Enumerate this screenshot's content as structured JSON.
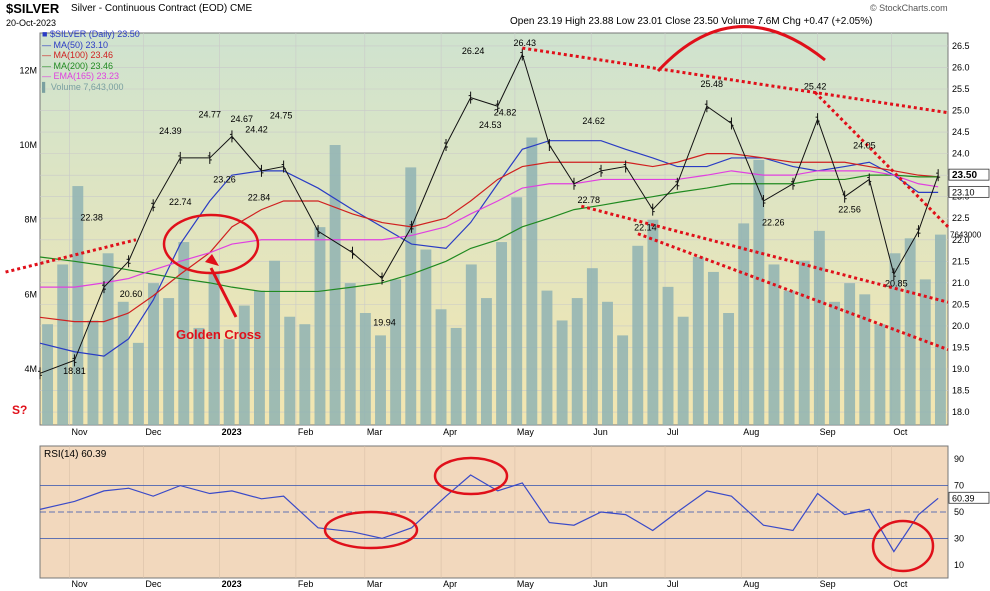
{
  "header": {
    "symbol": "$SILVER",
    "description": "Silver - Continuous Contract (EOD)",
    "exchange": "CME",
    "date": "20-Oct-2023",
    "ohlc": "Open 23.19  High 23.88  Low 23.01  Close 23.50  Volume 7.6M  Chg +0.47 (+2.05%)",
    "watermark": "© StockCharts.com"
  },
  "legend": {
    "price": "$SILVER (Daily) 23.50",
    "ma50": "MA(50) 23.10",
    "ma100": "MA(100) 23.46",
    "ma200": "MA(200) 23.46",
    "ema165": "EMA(165) 23.23",
    "volume": "Volume 7,643,000"
  },
  "annotations": {
    "golden_cross": "Golden Cross",
    "question": "S?"
  },
  "colors": {
    "price_bg_top": "#cfe3cf",
    "price_bg_bottom": "#f3e6b0",
    "rsi_bg": "#f2d8bd",
    "ma50": "#2a3cc4",
    "ma100": "#d02020",
    "ma200": "#208a20",
    "ema165": "#e040e0",
    "volume": "#8fb3b3",
    "annotation": "#e0101a",
    "rsi_line": "#3a4ac8"
  },
  "chart_data": [
    {
      "type": "line",
      "title": "$SILVER (Daily)",
      "x": [
        "2022-10-20",
        "2022-11-03",
        "2022-11-15",
        "2022-11-25",
        "2022-12-05",
        "2022-12-16",
        "2022-12-28",
        "2023-01-06",
        "2023-01-18",
        "2023-01-27",
        "2023-02-10",
        "2023-02-24",
        "2023-03-08",
        "2023-03-20",
        "2023-04-03",
        "2023-04-13",
        "2023-04-24",
        "2023-05-04",
        "2023-05-15",
        "2023-05-25",
        "2023-06-05",
        "2023-06-15",
        "2023-06-26",
        "2023-07-06",
        "2023-07-18",
        "2023-07-28",
        "2023-08-10",
        "2023-08-22",
        "2023-09-01",
        "2023-09-12",
        "2023-09-22",
        "2023-10-02",
        "2023-10-12",
        "2023-10-20"
      ],
      "series": [
        {
          "name": "$SILVER (Daily)",
          "values": [
            18.9,
            19.2,
            20.9,
            21.5,
            22.8,
            23.9,
            23.9,
            24.4,
            23.6,
            23.7,
            22.2,
            21.7,
            21.1,
            22.3,
            24.2,
            25.3,
            25.1,
            26.3,
            24.2,
            23.3,
            23.6,
            23.7,
            22.7,
            23.3,
            25.1,
            24.7,
            22.9,
            23.3,
            24.8,
            23.0,
            23.4,
            21.2,
            22.2,
            23.5
          ]
        },
        {
          "name": "MA(50)",
          "values": [
            19.6,
            19.4,
            19.3,
            19.7,
            20.6,
            21.9,
            22.9,
            23.5,
            23.6,
            23.6,
            23.2,
            22.7,
            22.3,
            21.9,
            21.8,
            22.4,
            23.3,
            24.1,
            24.3,
            24.3,
            24.3,
            24.1,
            23.9,
            23.7,
            23.7,
            23.9,
            23.9,
            23.7,
            23.6,
            23.7,
            23.8,
            23.5,
            23.1,
            23.1
          ]
        },
        {
          "name": "MA(100)",
          "values": [
            20.2,
            20.1,
            20.1,
            20.3,
            20.7,
            21.2,
            21.7,
            22.3,
            22.7,
            22.9,
            22.9,
            22.6,
            22.4,
            22.3,
            22.5,
            22.9,
            23.4,
            23.7,
            23.8,
            23.8,
            23.8,
            23.8,
            23.7,
            23.8,
            24.0,
            24.0,
            23.9,
            23.8,
            23.8,
            23.8,
            23.7,
            23.6,
            23.5,
            23.46
          ]
        },
        {
          "name": "MA(200)",
          "values": [
            21.6,
            21.5,
            21.4,
            21.3,
            21.2,
            21.1,
            21.0,
            20.9,
            20.8,
            20.8,
            20.8,
            20.9,
            21.0,
            21.2,
            21.5,
            21.8,
            22.0,
            22.3,
            22.5,
            22.7,
            22.8,
            22.9,
            23.0,
            23.1,
            23.2,
            23.3,
            23.3,
            23.3,
            23.4,
            23.4,
            23.5,
            23.5,
            23.46,
            23.46
          ]
        },
        {
          "name": "EMA(165)",
          "values": [
            20.9,
            20.9,
            21.0,
            21.1,
            21.3,
            21.5,
            21.7,
            21.9,
            22.0,
            22.0,
            22.0,
            22.0,
            22.0,
            22.1,
            22.3,
            22.6,
            22.9,
            23.2,
            23.3,
            23.3,
            23.4,
            23.4,
            23.4,
            23.4,
            23.5,
            23.6,
            23.5,
            23.5,
            23.6,
            23.6,
            23.6,
            23.5,
            23.3,
            23.23
          ]
        }
      ],
      "ylim": [
        17.7,
        26.8
      ],
      "yticks": [
        18.0,
        18.5,
        19.0,
        19.5,
        20.0,
        20.5,
        21.0,
        21.5,
        22.0,
        22.5,
        23.0,
        23.5,
        24.0,
        24.5,
        25.0,
        25.5,
        26.0,
        26.5
      ],
      "volume": {
        "ticks": [
          "4M",
          "6M",
          "8M",
          "10M",
          "12M"
        ],
        "values": [
          5.2,
          6.8,
          8.9,
          5.3,
          7.1,
          5.8,
          4.7,
          6.3,
          5.9,
          7.4,
          5.1,
          6.6,
          4.8,
          5.7,
          6.1,
          6.9,
          5.4,
          5.2,
          7.8,
          10.0,
          6.3,
          5.5,
          4.9,
          6.4,
          9.4,
          7.2,
          5.6,
          5.1,
          6.8,
          5.9,
          7.4,
          8.6,
          10.2,
          6.1,
          5.3,
          5.9,
          6.7,
          5.8,
          4.9,
          7.3,
          8.0,
          6.2,
          5.4,
          7.0,
          6.6,
          5.5,
          7.9,
          9.6,
          6.8,
          6.1,
          6.9,
          7.7,
          5.8,
          6.3,
          6.0,
          5.2,
          7.1,
          7.5,
          6.4,
          7.6
        ],
        "ylim": [
          2.5,
          13
        ]
      },
      "price_labels": [
        {
          "x": "2022-11-03",
          "y": 18.81,
          "text": "18.81"
        },
        {
          "x": "2022-11-10",
          "y": 22.38,
          "text": "22.38"
        },
        {
          "x": "2022-11-26",
          "y": 20.6,
          "text": "20.60"
        },
        {
          "x": "2022-12-12",
          "y": 24.39,
          "text": "24.39"
        },
        {
          "x": "2022-12-16",
          "y": 22.74,
          "text": "22.74"
        },
        {
          "x": "2022-12-28",
          "y": 24.77,
          "text": "24.77"
        },
        {
          "x": "2023-01-03",
          "y": 23.26,
          "text": "23.26"
        },
        {
          "x": "2023-01-10",
          "y": 24.67,
          "text": "24.67"
        },
        {
          "x": "2023-01-16",
          "y": 24.42,
          "text": "24.42"
        },
        {
          "x": "2023-01-17",
          "y": 22.84,
          "text": "22.84"
        },
        {
          "x": "2023-01-26",
          "y": 24.75,
          "text": "24.75"
        },
        {
          "x": "2023-03-09",
          "y": 19.94,
          "text": "19.94"
        },
        {
          "x": "2023-04-14",
          "y": 26.24,
          "text": "26.24"
        },
        {
          "x": "2023-04-21",
          "y": 24.53,
          "text": "24.53"
        },
        {
          "x": "2023-04-27",
          "y": 24.82,
          "text": "24.82"
        },
        {
          "x": "2023-05-05",
          "y": 26.43,
          "text": "26.43"
        },
        {
          "x": "2023-05-31",
          "y": 22.78,
          "text": "22.78"
        },
        {
          "x": "2023-06-02",
          "y": 24.62,
          "text": "24.62"
        },
        {
          "x": "2023-06-23",
          "y": 22.14,
          "text": "22.14"
        },
        {
          "x": "2023-07-20",
          "y": 25.48,
          "text": "25.48"
        },
        {
          "x": "2023-08-14",
          "y": 22.26,
          "text": "22.26"
        },
        {
          "x": "2023-08-31",
          "y": 25.42,
          "text": "25.42"
        },
        {
          "x": "2023-09-14",
          "y": 22.56,
          "text": "22.56"
        },
        {
          "x": "2023-09-20",
          "y": 24.05,
          "text": "24.05"
        },
        {
          "x": "2023-10-03",
          "y": 20.85,
          "text": "20.85"
        }
      ],
      "last_price_tags": [
        {
          "text": "23.50",
          "y": 23.5
        },
        {
          "text": "23.10",
          "y": 23.1
        }
      ],
      "volume_tag": "7643000",
      "x_axis_labels": [
        {
          "x": "2022-11-01",
          "text": "Nov"
        },
        {
          "x": "2022-12-01",
          "text": "Dec"
        },
        {
          "x": "2023-01-01",
          "text": "2023"
        },
        {
          "x": "2023-02-01",
          "text": "Feb"
        },
        {
          "x": "2023-03-01",
          "text": "Mar"
        },
        {
          "x": "2023-04-01",
          "text": "Apr"
        },
        {
          "x": "2023-05-01",
          "text": "May"
        },
        {
          "x": "2023-06-01",
          "text": "Jun"
        },
        {
          "x": "2023-07-01",
          "text": "Jul"
        },
        {
          "x": "2023-08-01",
          "text": "Aug"
        },
        {
          "x": "2023-09-01",
          "text": "Sep"
        },
        {
          "x": "2023-10-01",
          "text": "Oct"
        }
      ],
      "trendlines": [
        {
          "from": [
            "2023-05-04",
            26.45
          ],
          "to": [
            "2023-10-24",
            24.95
          ]
        },
        {
          "from": [
            "2023-05-28",
            22.78
          ],
          "to": [
            "2023-10-24",
            20.55
          ]
        },
        {
          "from": [
            "2023-06-20",
            22.14
          ],
          "to": [
            "2023-10-24",
            19.45
          ]
        },
        {
          "from": [
            "2023-08-31",
            25.42
          ],
          "to": [
            "2023-10-24",
            22.3
          ]
        },
        {
          "from": [
            "2022-10-06",
            21.25
          ],
          "to": [
            "2022-11-28",
            22.0
          ]
        }
      ],
      "grid": true
    },
    {
      "type": "line",
      "title": "RSI(14) 60.39",
      "x": [
        "2022-10-20",
        "2022-11-03",
        "2022-11-15",
        "2022-11-25",
        "2022-12-05",
        "2022-12-16",
        "2022-12-28",
        "2023-01-06",
        "2023-01-18",
        "2023-01-27",
        "2023-02-10",
        "2023-02-24",
        "2023-03-08",
        "2023-03-20",
        "2023-04-03",
        "2023-04-13",
        "2023-04-24",
        "2023-05-04",
        "2023-05-15",
        "2023-05-25",
        "2023-06-05",
        "2023-06-15",
        "2023-06-26",
        "2023-07-06",
        "2023-07-18",
        "2023-07-28",
        "2023-08-10",
        "2023-08-22",
        "2023-09-01",
        "2023-09-12",
        "2023-09-22",
        "2023-10-02",
        "2023-10-12",
        "2023-10-20"
      ],
      "series": [
        {
          "name": "RSI(14)",
          "values": [
            52,
            58,
            66,
            68,
            62,
            70,
            64,
            66,
            60,
            62,
            38,
            35,
            30,
            38,
            62,
            78,
            66,
            72,
            42,
            40,
            50,
            48,
            36,
            50,
            66,
            62,
            40,
            36,
            64,
            48,
            52,
            20,
            48,
            60.39
          ]
        }
      ],
      "ylim": [
        0,
        100
      ],
      "yticks": [
        10,
        30,
        50,
        70,
        90
      ],
      "reference_lines": [
        30,
        50,
        70
      ],
      "last_value_tag": "60.39"
    }
  ]
}
